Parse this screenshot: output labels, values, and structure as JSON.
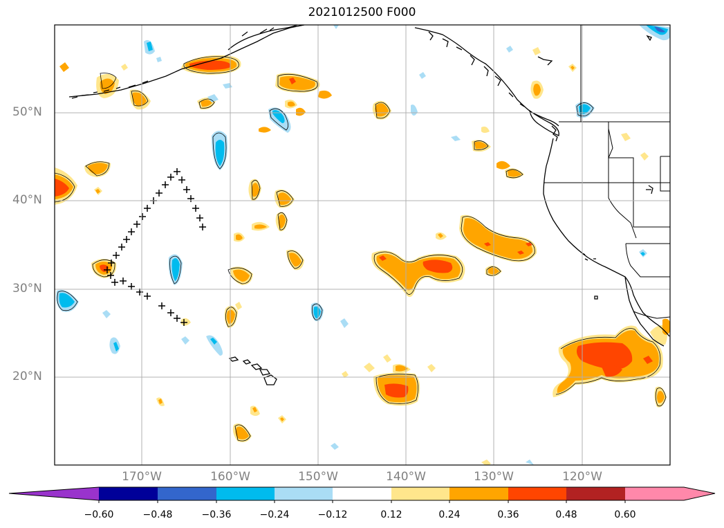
{
  "title": "2021012500 F000",
  "lat_labels": [
    "50°N",
    "40°N",
    "30°N",
    "20°N"
  ],
  "lon_labels": [
    "170°W",
    "160°W",
    "150°W",
    "140°W",
    "130°W",
    "120°W"
  ],
  "colorbar": {
    "ticks": [
      "−0.60",
      "−0.48",
      "−0.36",
      "−0.24",
      "−0.12",
      "0.12",
      "0.24",
      "0.36",
      "0.48",
      "0.60"
    ],
    "colors": [
      "#9933cc",
      "#000099",
      "#3366cc",
      "#00bbee",
      "#aaddf5",
      "#ffffff",
      "#ffe68c",
      "#ffa500",
      "#ff4500",
      "#b22222",
      "#ff88aa"
    ]
  },
  "map": {
    "extent": {
      "lon_min": -180,
      "lon_max": -110,
      "lat_min": 10,
      "lat_max": 60
    },
    "gridlines": true,
    "track_markers": "+"
  }
}
